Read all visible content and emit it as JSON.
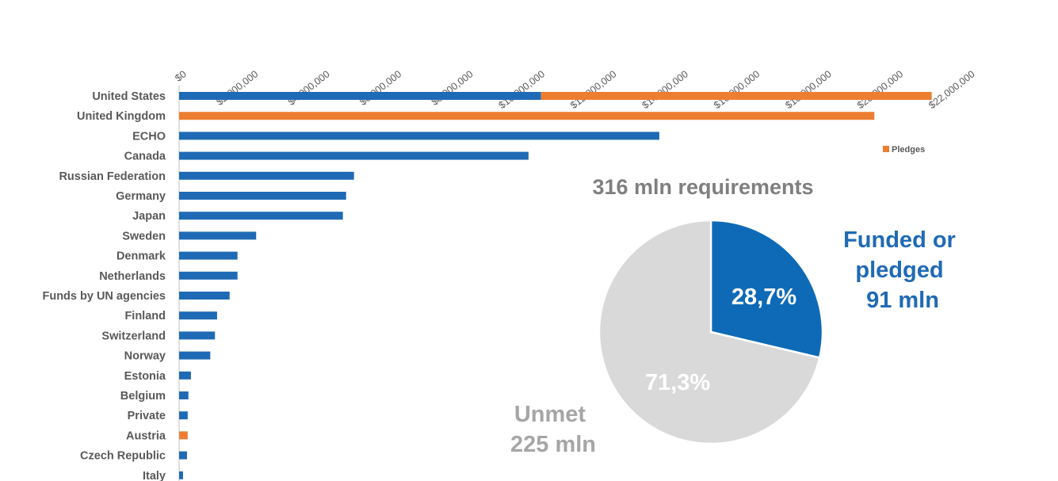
{
  "chart_data": [
    {
      "type": "bar",
      "orientation": "horizontal",
      "categories": [
        "United States",
        "United Kingdom",
        "ECHO",
        "Canada",
        "Russian Federation",
        "Germany",
        "Japan",
        "Sweden",
        "Denmark",
        "Netherlands",
        "Funds by UN agencies",
        "Finland",
        "Switzerland",
        "Norway",
        "Estonia",
        "Belgium",
        "Private",
        "Austria",
        "Czech Republic",
        "Italy"
      ],
      "stacked": true,
      "series": [
        {
          "values": [
            10100000,
            0,
            13400000,
            9750000,
            4880000,
            4660000,
            4570000,
            2150000,
            1630000,
            1630000,
            1410000,
            1060000,
            1000000,
            870000,
            330000,
            260000,
            240000,
            0,
            220000,
            110000
          ]
        },
        {
          "name": "Pledges",
          "values": [
            10900000,
            19400000,
            0,
            0,
            0,
            0,
            0,
            0,
            0,
            0,
            0,
            0,
            0,
            0,
            0,
            0,
            0,
            240000,
            0,
            0
          ]
        }
      ],
      "xlim": [
        0,
        22000000
      ],
      "xticks": [
        "$0",
        "$2,000,000",
        "$4,000,000",
        "$6,000,000",
        "$8,000,000",
        "$10,000,000",
        "$12,000,000",
        "$14,000,000",
        "$16,000,000",
        "$18,000,000",
        "$20,000,000",
        "$22,000,000"
      ],
      "legend": "right",
      "colors": [
        "#1f6ab5",
        "#ed7d31"
      ]
    },
    {
      "type": "pie",
      "title": "316 mln requirements",
      "slices": [
        {
          "label": "28,7%",
          "value": 28.7,
          "annotation": [
            "Funded or",
            "pledged",
            "91 mln"
          ],
          "color": "#0e6ab6"
        },
        {
          "label": "71,3%",
          "value": 71.3,
          "annotation": [
            "Unmet",
            "225 mln"
          ],
          "color": "#d9d9d9"
        }
      ]
    }
  ]
}
